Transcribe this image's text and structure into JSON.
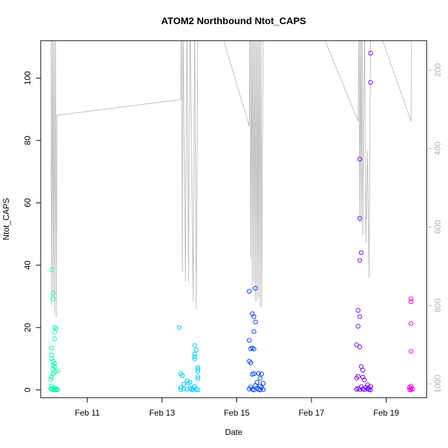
{
  "chart_data": {
    "type": "scatter",
    "title": "ATOM2 Northbound Ntot_CAPS",
    "xlabel": "Date",
    "ylabel": "Ntot_CAPS",
    "xlim": [
      "2020-02-09 18:00",
      "2020-02-20 02:00"
    ],
    "ylim": [
      -2.5,
      112
    ],
    "x_ticks": [
      "Feb 11",
      "Feb 13",
      "Feb 15",
      "Feb 17",
      "Feb 19"
    ],
    "x_tick_dates": [
      "2020-02-11",
      "2020-02-13",
      "2020-02-15",
      "2020-02-17",
      "2020-02-19"
    ],
    "y_ticks": [
      0,
      20,
      40,
      60,
      80,
      100
    ],
    "secondary_axis": {
      "side": "right",
      "reversed": true,
      "ticks": [
        200,
        400,
        600,
        800,
        1000
      ],
      "range": [
        125,
        1035
      ],
      "color": "#b3b3b3"
    },
    "point_colors": {
      "Feb 10": "#00ffb2",
      "Feb 13": "#00c8ff",
      "Feb 15": "#0041ff",
      "Feb 18": "#7300ff",
      "Feb 19": "#ff00e6"
    },
    "grey_trace_color": "#bfbfbf",
    "series": [
      {
        "group": "Feb 10",
        "points": [
          [
            "2020-02-10 01:00",
            38.5
          ],
          [
            "2020-02-10 02:00",
            31
          ],
          [
            "2020-02-10 02:00",
            29.2
          ],
          [
            "2020-02-10 03:00",
            20
          ],
          [
            "2020-02-10 04:00",
            19.7
          ],
          [
            "2020-02-10 03:00",
            18.5
          ],
          [
            "2020-02-10 03:00",
            16.4
          ],
          [
            "2020-02-10 01:00",
            13.4
          ],
          [
            "2020-02-10 01:00",
            11.2
          ],
          [
            "2020-02-10 01:00",
            10
          ],
          [
            "2020-02-10 02:00",
            9.2
          ],
          [
            "2020-02-10 03:00",
            8.5
          ],
          [
            "2020-02-10 02:00",
            7.8
          ],
          [
            "2020-02-10 03:00",
            7.4
          ],
          [
            "2020-02-10 02:00",
            6.7
          ],
          [
            "2020-02-10 05:00",
            6.1
          ],
          [
            "2020-02-10 03:00",
            5.7
          ],
          [
            "2020-02-10 02:00",
            5.2
          ],
          [
            "2020-02-10 01:00",
            4.2
          ],
          [
            "2020-02-10 00:30",
            3.4
          ],
          [
            "2020-02-10 01:00",
            1.2
          ],
          [
            "2020-02-10 03:00",
            0.8
          ],
          [
            "2020-02-10 00:30",
            0.4
          ],
          [
            "2020-02-10 01:00",
            0.2
          ],
          [
            "2020-02-10 02:00",
            0.1
          ],
          [
            "2020-02-10 03:00",
            0.3
          ],
          [
            "2020-02-10 04:00",
            0.2
          ],
          [
            "2020-02-10 05:00",
            0.1
          ],
          [
            "2020-02-10 02:00",
            0.0
          ],
          [
            "2020-02-10 04:00",
            0.0
          ]
        ]
      },
      {
        "group": "Feb 13",
        "points": [
          [
            "2020-02-13 11:00",
            20
          ],
          [
            "2020-02-13 21:00",
            14.2
          ],
          [
            "2020-02-13 22:00",
            12.8
          ],
          [
            "2020-02-13 21:00",
            11.5
          ],
          [
            "2020-02-13 21:00",
            10.6
          ],
          [
            "2020-02-13 21:00",
            9.9
          ],
          [
            "2020-02-13 23:00",
            7.2
          ],
          [
            "2020-02-13 23:00",
            6.6
          ],
          [
            "2020-02-13 23:00",
            6
          ],
          [
            "2020-02-13 12:00",
            5.2
          ],
          [
            "2020-02-13 13:00",
            4.6
          ],
          [
            "2020-02-13 23:00",
            4.2
          ],
          [
            "2020-02-13 23:00",
            3.6
          ],
          [
            "2020-02-13 16:00",
            2.9
          ],
          [
            "2020-02-13 18:00",
            2.5
          ],
          [
            "2020-02-13 17:00",
            2.1
          ],
          [
            "2020-02-13 14:00",
            1.8
          ],
          [
            "2020-02-13 21:00",
            1.2
          ],
          [
            "2020-02-13 12:00",
            0.8
          ],
          [
            "2020-02-13 20:00",
            0.7
          ],
          [
            "2020-02-13 18:00",
            0.5
          ],
          [
            "2020-02-13 14:00",
            0.3
          ],
          [
            "2020-02-13 16:00",
            0.2
          ],
          [
            "2020-02-13 22:00",
            0.2
          ],
          [
            "2020-02-13 12:00",
            0.1
          ],
          [
            "2020-02-13 19:00",
            0.1
          ],
          [
            "2020-02-13 20:00",
            0.0
          ],
          [
            "2020-02-13 23:00",
            0.0
          ]
        ]
      },
      {
        "group": "Feb 15",
        "points": [
          [
            "2020-02-15 12:00",
            32.6
          ],
          [
            "2020-02-15 08:00",
            31.6
          ],
          [
            "2020-02-15 10:00",
            24.4
          ],
          [
            "2020-02-15 11:00",
            23.5
          ],
          [
            "2020-02-15 12:00",
            21.8
          ],
          [
            "2020-02-15 11:00",
            18.7
          ],
          [
            "2020-02-15 08:00",
            15.9
          ],
          [
            "2020-02-15 10:00",
            13.4
          ],
          [
            "2020-02-15 11:00",
            13.1
          ],
          [
            "2020-02-15 09:00",
            13.2
          ],
          [
            "2020-02-15 08:00",
            9.2
          ],
          [
            "2020-02-15 09:00",
            8.7
          ],
          [
            "2020-02-15 11:00",
            5.2
          ],
          [
            "2020-02-15 14:00",
            5.3
          ],
          [
            "2020-02-15 16:00",
            5.1
          ],
          [
            "2020-02-15 10:00",
            5.0
          ],
          [
            "2020-02-15 15:00",
            3.7
          ],
          [
            "2020-02-15 13:00",
            2.4
          ],
          [
            "2020-02-15 17:00",
            2.1
          ],
          [
            "2020-02-15 12:00",
            1.4
          ],
          [
            "2020-02-15 15:00",
            1.2
          ],
          [
            "2020-02-15 09:00",
            0.9
          ],
          [
            "2020-02-15 16:00",
            0.8
          ],
          [
            "2020-02-15 13:00",
            0.5
          ],
          [
            "2020-02-15 08:00",
            0.3
          ],
          [
            "2020-02-15 10:00",
            0.2
          ],
          [
            "2020-02-15 14:00",
            0.2
          ],
          [
            "2020-02-15 17:00",
            0.1
          ],
          [
            "2020-02-15 11:00",
            0.0
          ],
          [
            "2020-02-15 15:00",
            0.0
          ]
        ]
      },
      {
        "group": "Feb 18",
        "points": [
          [
            "2020-02-18 14:00",
            108
          ],
          [
            "2020-02-18 14:00",
            98.6
          ],
          [
            "2020-02-18 07:00",
            74
          ],
          [
            "2020-02-18 07:00",
            55
          ],
          [
            "2020-02-18 08:00",
            44
          ],
          [
            "2020-02-18 07:00",
            41.5
          ],
          [
            "2020-02-18 06:00",
            25.5
          ],
          [
            "2020-02-18 07:00",
            23.5
          ],
          [
            "2020-02-18 06:00",
            20.4
          ],
          [
            "2020-02-18 05:00",
            14.5
          ],
          [
            "2020-02-18 07:00",
            13.8
          ],
          [
            "2020-02-18 08:00",
            7.5
          ],
          [
            "2020-02-18 09:00",
            6.3
          ],
          [
            "2020-02-18 06:00",
            4.3
          ],
          [
            "2020-02-18 09:00",
            4.1
          ],
          [
            "2020-02-18 05:00",
            3.8
          ],
          [
            "2020-02-18 10:00",
            3.2
          ],
          [
            "2020-02-18 12:00",
            1.6
          ],
          [
            "2020-02-18 14:00",
            1.1
          ],
          [
            "2020-02-18 08:00",
            1.0
          ],
          [
            "2020-02-18 11:00",
            0.8
          ],
          [
            "2020-02-18 13:00",
            0.7
          ],
          [
            "2020-02-18 06:00",
            0.5
          ],
          [
            "2020-02-18 09:00",
            0.3
          ],
          [
            "2020-02-18 12:00",
            0.3
          ],
          [
            "2020-02-18 05:00",
            0.2
          ],
          [
            "2020-02-18 07:00",
            0.1
          ],
          [
            "2020-02-18 10:00",
            0.1
          ],
          [
            "2020-02-18 13:00",
            0.1
          ],
          [
            "2020-02-18 14:00",
            0.0
          ]
        ]
      },
      {
        "group": "Feb 19",
        "points": [
          [
            "2020-02-19 16:00",
            29.2
          ],
          [
            "2020-02-19 16:00",
            28.3
          ],
          [
            "2020-02-19 16:00",
            21.3
          ],
          [
            "2020-02-19 16:00",
            12.4
          ],
          [
            "2020-02-19 16:00",
            1.2
          ],
          [
            "2020-02-19 15:00",
            0.8
          ],
          [
            "2020-02-19 16:00",
            0.5
          ],
          [
            "2020-02-19 17:00",
            0.3
          ],
          [
            "2020-02-19 15:00",
            0.1
          ],
          [
            "2020-02-19 16:00",
            0.0
          ]
        ]
      }
    ],
    "grey_trace": [
      [
        "2020-02-10 00:30",
        50
      ],
      [
        "2020-02-10 01:00",
        800
      ],
      [
        "2020-02-10 01:30",
        50
      ],
      [
        "2020-02-10 02:00",
        780
      ],
      [
        "2020-02-10 02:30",
        50
      ],
      [
        "2020-02-10 03:00",
        820
      ],
      [
        "2020-02-10 03:30",
        50
      ],
      [
        "2020-02-10 04:00",
        830
      ],
      [
        "2020-02-10 04:30",
        315
      ],
      [
        "2020-02-13 12:00",
        275
      ],
      [
        "2020-02-13 12:30",
        50
      ],
      [
        "2020-02-13 13:00",
        715
      ],
      [
        "2020-02-13 13:30",
        50
      ],
      [
        "2020-02-13 15:00",
        740
      ],
      [
        "2020-02-13 16:00",
        50
      ],
      [
        "2020-02-13 17:00",
        740
      ],
      [
        "2020-02-13 18:00",
        50
      ],
      [
        "2020-02-13 20:00",
        790
      ],
      [
        "2020-02-13 21:00",
        50
      ],
      [
        "2020-02-13 22:00",
        810
      ],
      [
        "2020-02-13 23:00",
        50
      ],
      [
        "2020-02-14 10:00",
        50
      ],
      [
        "2020-02-15 08:00",
        343
      ],
      [
        "2020-02-15 08:30",
        50
      ],
      [
        "2020-02-15 09:00",
        680
      ],
      [
        "2020-02-15 09:30",
        50
      ],
      [
        "2020-02-15 10:00",
        760
      ],
      [
        "2020-02-15 10:30",
        50
      ],
      [
        "2020-02-15 11:00",
        740
      ],
      [
        "2020-02-15 11:30",
        50
      ],
      [
        "2020-02-15 12:00",
        790
      ],
      [
        "2020-02-15 12:30",
        50
      ],
      [
        "2020-02-15 13:00",
        790
      ],
      [
        "2020-02-15 13:30",
        50
      ],
      [
        "2020-02-15 14:00",
        780
      ],
      [
        "2020-02-15 14:30",
        50
      ],
      [
        "2020-02-15 15:00",
        800
      ],
      [
        "2020-02-15 15:30",
        50
      ],
      [
        "2020-02-15 16:00",
        805
      ],
      [
        "2020-02-15 17:00",
        50
      ],
      [
        "2020-02-17 01:00",
        50
      ],
      [
        "2020-02-18 06:00",
        330
      ],
      [
        "2020-02-18 06:30",
        50
      ],
      [
        "2020-02-18 07:00",
        590
      ],
      [
        "2020-02-18 07:30",
        50
      ],
      [
        "2020-02-18 08:00",
        590
      ],
      [
        "2020-02-18 08:30",
        50
      ],
      [
        "2020-02-18 09:00",
        620
      ],
      [
        "2020-02-18 10:00",
        50
      ],
      [
        "2020-02-18 11:00",
        640
      ],
      [
        "2020-02-18 12:00",
        405
      ],
      [
        "2020-02-18 13:00",
        730
      ],
      [
        "2020-02-18 14:00",
        50
      ],
      [
        "2020-02-18 15:00",
        50
      ],
      [
        "2020-02-19 16:00",
        330
      ],
      [
        "2020-02-19 16:30",
        50
      ]
    ]
  }
}
